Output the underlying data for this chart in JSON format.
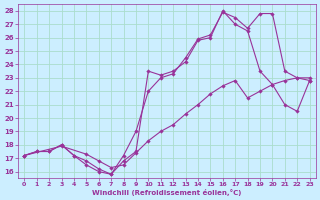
{
  "xlabel": "Windchill (Refroidissement éolien,°C)",
  "bg_color": "#cceeff",
  "grid_color": "#aaddcc",
  "line_color": "#993399",
  "xlim": [
    -0.5,
    23.5
  ],
  "ylim": [
    15.5,
    28.5
  ],
  "xticks": [
    0,
    1,
    2,
    3,
    4,
    5,
    6,
    7,
    8,
    9,
    10,
    11,
    12,
    13,
    14,
    15,
    16,
    17,
    18,
    19,
    20,
    21,
    22,
    23
  ],
  "yticks": [
    16,
    17,
    18,
    19,
    20,
    21,
    22,
    23,
    24,
    25,
    26,
    27,
    28
  ],
  "series": [
    {
      "x": [
        0,
        3,
        5,
        6,
        7,
        8,
        9,
        10,
        11,
        12,
        13,
        14,
        15,
        16,
        17,
        18,
        19,
        20,
        21,
        22,
        23
      ],
      "y": [
        17.2,
        17.9,
        17.3,
        16.8,
        16.3,
        16.5,
        17.4,
        18.3,
        19.0,
        19.5,
        20.3,
        21.0,
        21.8,
        22.4,
        22.8,
        21.5,
        22.0,
        22.5,
        22.8,
        23.0,
        23.0
      ]
    },
    {
      "x": [
        0,
        1,
        2,
        3,
        4,
        5,
        6,
        7,
        8,
        9,
        10,
        11,
        12,
        13,
        14,
        15,
        16,
        17,
        18,
        19,
        20,
        21,
        22,
        23
      ],
      "y": [
        17.2,
        17.5,
        17.5,
        18.0,
        17.2,
        16.5,
        16.0,
        15.8,
        16.8,
        17.5,
        23.5,
        23.2,
        23.5,
        24.2,
        25.8,
        26.0,
        28.0,
        27.0,
        26.5,
        23.5,
        22.5,
        21.0,
        20.5,
        22.8
      ]
    },
    {
      "x": [
        0,
        1,
        2,
        3,
        4,
        5,
        6,
        7,
        8,
        9,
        10,
        11,
        12,
        13,
        14,
        15,
        16,
        17,
        18,
        19,
        20,
        21,
        22,
        23
      ],
      "y": [
        17.2,
        17.5,
        17.5,
        18.0,
        17.2,
        16.8,
        16.2,
        15.8,
        17.2,
        19.0,
        22.0,
        23.0,
        23.3,
        24.5,
        25.9,
        26.2,
        27.9,
        27.5,
        26.7,
        27.8,
        27.8,
        23.5,
        23.0,
        22.8
      ]
    }
  ]
}
